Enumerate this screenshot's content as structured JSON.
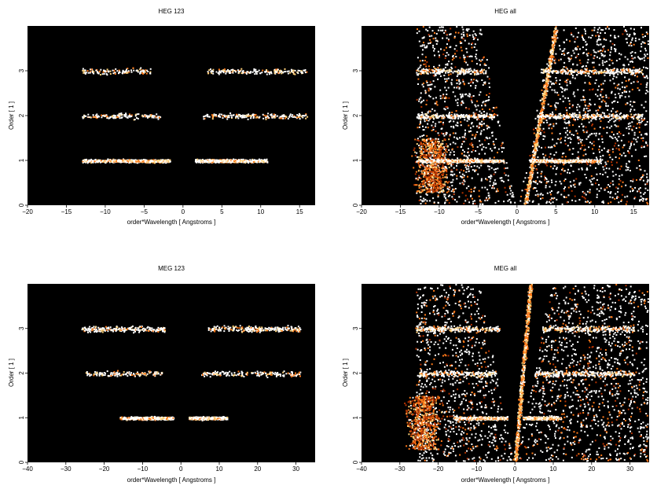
{
  "figure": {
    "description_colormap": [
      "#000000",
      "#5a0c00",
      "#b43200",
      "#ff7a1a",
      "#ffd27a",
      "#ffffff"
    ]
  },
  "chart_data": [
    {
      "type": "heatmap",
      "title": "HEG 123",
      "xlabel": "order*Wavelength [ Angstroms ]",
      "ylabel": "Order [ 1 ]",
      "xlim": [
        -20,
        17
      ],
      "ylim": [
        0,
        4
      ],
      "xticks": [
        -20,
        -15,
        -10,
        -5,
        0,
        5,
        10,
        15
      ],
      "yticks": [
        0,
        1,
        2,
        3
      ],
      "grid": false,
      "bands": [
        {
          "order": 1,
          "x_ranges": [
            [
              -13,
              -1.7
            ],
            [
              1.5,
              10.8
            ]
          ],
          "peak_ranges": [
            [
              -9,
              -2
            ],
            [
              2,
              8
            ]
          ],
          "density": "high"
        },
        {
          "order": 2,
          "x_ranges": [
            [
              -13,
              -3
            ],
            [
              2.5,
              16
            ]
          ],
          "density": "low"
        },
        {
          "order": 3,
          "x_ranges": [
            [
              -13,
              -4
            ],
            [
              3,
              16
            ]
          ],
          "density": "low"
        }
      ]
    },
    {
      "type": "heatmap",
      "title": "HEG all",
      "xlabel": "order*Wavelength [ Angstroms ]",
      "ylabel": "Order [ 1 ]",
      "xlim": [
        -20,
        17
      ],
      "ylim": [
        0,
        4
      ],
      "xticks": [
        -20,
        -15,
        -10,
        -5,
        0,
        5,
        10,
        15
      ],
      "yticks": [
        0,
        1,
        2,
        3
      ],
      "grid": false,
      "bands": [
        {
          "order": 1,
          "x_ranges": [
            [
              -13,
              -1.7
            ],
            [
              1.5,
              10.8
            ]
          ],
          "peak_ranges": [
            [
              -9,
              -2
            ],
            [
              2,
              8
            ]
          ],
          "density": "high"
        },
        {
          "order": 2,
          "x_ranges": [
            [
              -13,
              -3
            ],
            [
              2.5,
              16
            ]
          ],
          "density": "medium"
        },
        {
          "order": 3,
          "x_ranges": [
            [
              -13,
              -4
            ],
            [
              3,
              16
            ]
          ],
          "density": "medium"
        }
      ],
      "background_wedge_x": [
        -13,
        17
      ],
      "diagonal_streak": "from (1,0) to (5,4)"
    },
    {
      "type": "heatmap",
      "title": "MEG 123",
      "xlabel": "order*Wavelength [ Angstroms ]",
      "ylabel": "Order [ 1 ]",
      "xlim": [
        -40,
        35
      ],
      "ylim": [
        0,
        4
      ],
      "xticks": [
        -40,
        -30,
        -20,
        -10,
        0,
        10,
        20,
        30
      ],
      "yticks": [
        0,
        1,
        2,
        3
      ],
      "grid": false,
      "bands": [
        {
          "order": 1,
          "x_ranges": [
            [
              -16,
              -2
            ],
            [
              2,
              12
            ]
          ],
          "peak_ranges": [
            [
              -12,
              -3
            ],
            [
              2,
              10
            ]
          ],
          "density": "high"
        },
        {
          "order": 2,
          "x_ranges": [
            [
              -25,
              -5
            ],
            [
              5,
              31
            ]
          ],
          "density": "low"
        },
        {
          "order": 3,
          "x_ranges": [
            [
              -26,
              -4
            ],
            [
              7,
              31
            ]
          ],
          "density": "medium"
        }
      ]
    },
    {
      "type": "heatmap",
      "title": "MEG all",
      "xlabel": "order*Wavelength [ Angstroms ]",
      "ylabel": "Order [ 1 ]",
      "xlim": [
        -40,
        35
      ],
      "ylim": [
        0,
        4
      ],
      "xticks": [
        -40,
        -30,
        -20,
        -10,
        0,
        10,
        20,
        30
      ],
      "yticks": [
        0,
        1,
        2,
        3
      ],
      "grid": false,
      "bands": [
        {
          "order": 1,
          "x_ranges": [
            [
              -16,
              -2
            ],
            [
              2,
              12
            ]
          ],
          "peak_ranges": [
            [
              -12,
              -3
            ],
            [
              2,
              10
            ]
          ],
          "density": "high"
        },
        {
          "order": 2,
          "x_ranges": [
            [
              -25,
              -5
            ],
            [
              5,
              31
            ]
          ],
          "density": "medium"
        },
        {
          "order": 3,
          "x_ranges": [
            [
              -26,
              -4
            ],
            [
              7,
              31
            ]
          ],
          "density": "medium"
        }
      ],
      "background_wedge_x": [
        -26,
        35
      ],
      "diagonal_streak": "from (0,0) to (4,4)"
    }
  ]
}
